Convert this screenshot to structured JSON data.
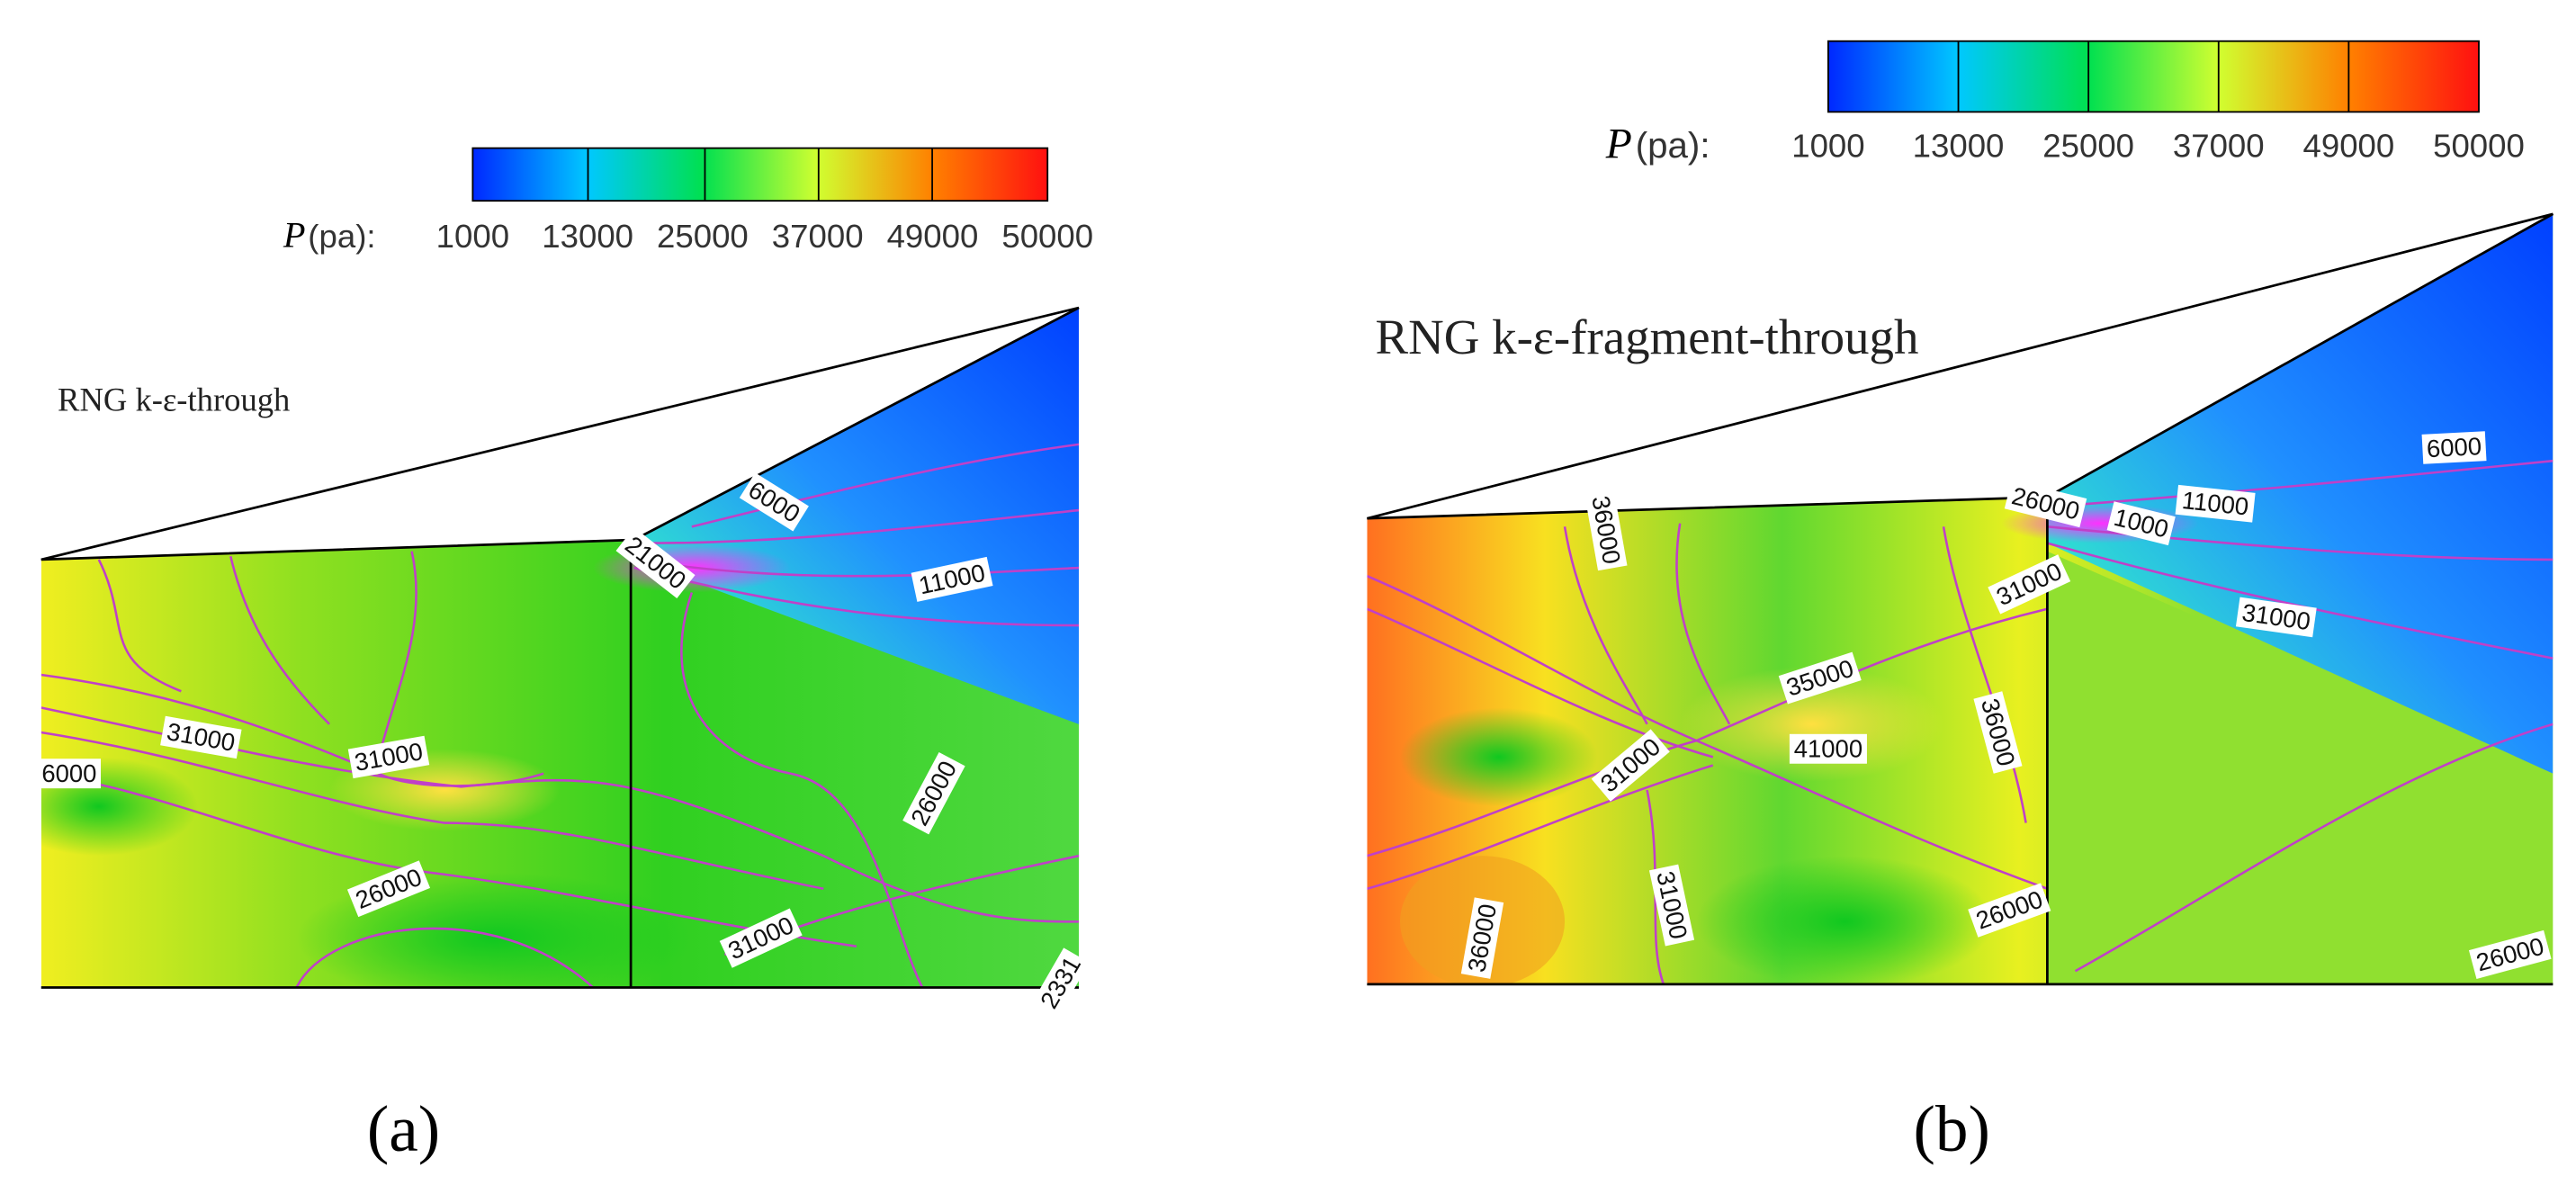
{
  "panels": [
    {
      "label": "(a)",
      "title": "RNG k-ε-through",
      "legend": {
        "symbol": "P",
        "unit": "(pa):",
        "ticks": [
          "1000",
          "13000",
          "25000",
          "37000",
          "49000",
          "50000"
        ]
      },
      "contour_labels": [
        "6000",
        "21000",
        "11000",
        "31000",
        "31000",
        "6000",
        "26000",
        "26000",
        "31000",
        "2331"
      ]
    },
    {
      "label": "(b)",
      "title": "RNG k-ε-fragment-through",
      "legend": {
        "symbol": "P",
        "unit": "(pa):",
        "ticks": [
          "1000",
          "13000",
          "25000",
          "37000",
          "49000",
          "50000"
        ]
      },
      "contour_labels": [
        "36000",
        "26000",
        "1000",
        "11000",
        "6000",
        "31000",
        "31000",
        "35000",
        "41000",
        "36000",
        "31000",
        "31000",
        "36000",
        "26000",
        "26000"
      ]
    }
  ]
}
